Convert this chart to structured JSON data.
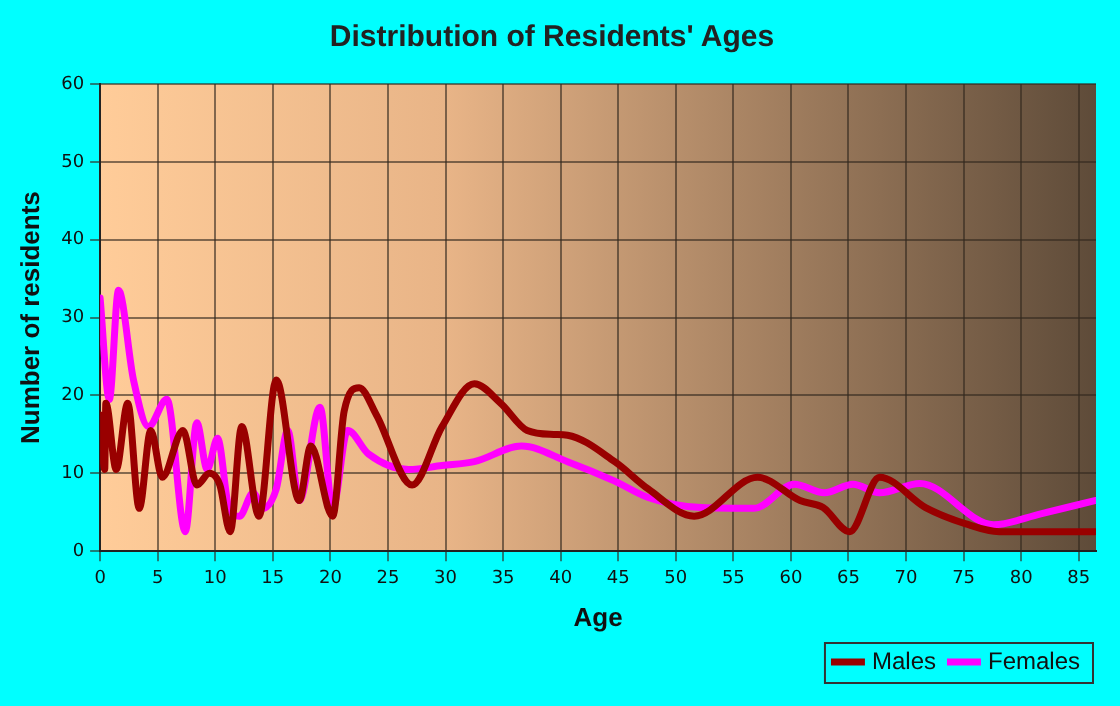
{
  "chart_data": {
    "type": "line",
    "title": "Distribution of Residents' Ages",
    "xlabel": "Age",
    "ylabel": "Number of residents",
    "xlim": [
      0,
      86.5
    ],
    "xticks": [
      0,
      5,
      10,
      15,
      20,
      25,
      30,
      35,
      40,
      45,
      50,
      55,
      60,
      65,
      70,
      75,
      80,
      85
    ],
    "ylim": [
      0,
      60
    ],
    "yticks": [
      0,
      10,
      20,
      30,
      40,
      50,
      60
    ],
    "grid": true,
    "legend": "bottom right",
    "marker": "none",
    "line_style": "solid",
    "series": [
      {
        "name": "Males",
        "color": "#990000",
        "x": [
          0,
          0.4,
          0.5,
          1.4,
          2.4,
          3.4,
          4.4,
          5.4,
          7.2,
          8.4,
          9.5,
          10.4,
          11.3,
          12.3,
          13.8,
          15.3,
          17.3,
          18.3,
          20.2,
          21.2,
          22.5,
          24,
          27.1,
          29.7,
          32.5,
          34.8,
          37.1,
          39.4,
          40.6,
          44.7,
          47.6,
          51.6,
          57.1,
          60.8,
          62.8,
          65.1,
          67.7,
          71.7,
          75.2,
          78.1,
          86.4
        ],
        "values": [
          17.5,
          10.5,
          19,
          10.5,
          19,
          5.5,
          15.5,
          9.5,
          15.5,
          8.5,
          10,
          8.5,
          2.5,
          16,
          4.5,
          22,
          6.5,
          13.5,
          4.5,
          18,
          21,
          17.5,
          8.5,
          16,
          21.5,
          19,
          15.5,
          15,
          14.9,
          11.5,
          8,
          4.5,
          9.5,
          6.5,
          5.6,
          2.5,
          9.5,
          5.6,
          3.5,
          2.5,
          2.5
        ]
      },
      {
        "name": "Females",
        "color": "#ff00ff",
        "x": [
          0,
          0.8,
          1.6,
          2.9,
          4.2,
          5.8,
          7.4,
          8.4,
          9.3,
          10.2,
          11.2,
          12.1,
          13.3,
          14.1,
          15.3,
          16.3,
          17.3,
          19.1,
          20.2,
          21.5,
          23.3,
          26.8,
          29.7,
          32.5,
          36.6,
          40.6,
          44.7,
          47.6,
          52.2,
          56.8,
          60.3,
          62.9,
          65.4,
          67.7,
          71.2,
          77.6,
          81.7,
          86.4
        ],
        "values": [
          32.5,
          19.5,
          33.5,
          22,
          16,
          19.5,
          2.5,
          16.5,
          10.5,
          14.5,
          5.5,
          4.5,
          7.5,
          5.5,
          8,
          15.5,
          6.5,
          18.5,
          5.5,
          15.5,
          12.5,
          10.5,
          11,
          11.5,
          13.5,
          11.5,
          9,
          6.9,
          5.6,
          5.5,
          8.6,
          7.5,
          8.6,
          7.5,
          8.7,
          3.4,
          4.8,
          6.5
        ]
      }
    ]
  }
}
